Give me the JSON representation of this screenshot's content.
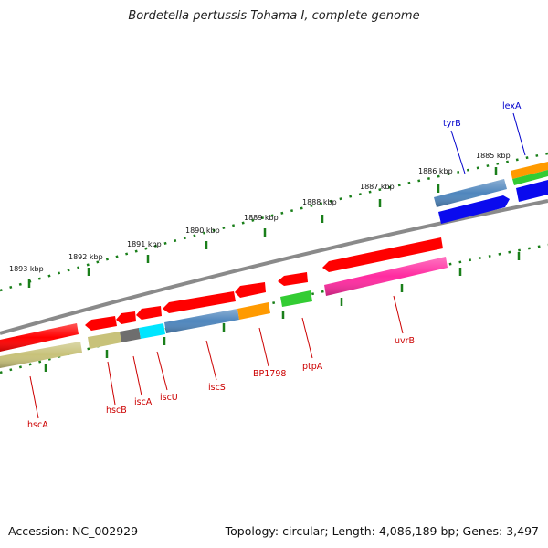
{
  "title": "Bordetella pertussis Tohama I, complete genome",
  "footer": {
    "accession": "Accession: NC_002929",
    "summary": "Topology: circular; Length: 4,086,189 bp; Genes: 3,497"
  },
  "ruler_labels": [
    "1893 kbp",
    "1892 kbp",
    "1891 kbp",
    "1890 kbp",
    "1889 kbp",
    "1888 kbp",
    "1887 kbp",
    "1886 kbp",
    "1885 kbp"
  ],
  "genes": [
    {
      "name": "hscA",
      "strand": "top"
    },
    {
      "name": "hscB",
      "strand": "top"
    },
    {
      "name": "iscA",
      "strand": "top"
    },
    {
      "name": "iscU",
      "strand": "top"
    },
    {
      "name": "iscS",
      "strand": "top"
    },
    {
      "name": "BP1798",
      "strand": "top"
    },
    {
      "name": "ptpA",
      "strand": "top"
    },
    {
      "name": "uvrB",
      "strand": "top"
    },
    {
      "name": "tyrB",
      "strand": "bottom"
    },
    {
      "name": "lexA",
      "strand": "bottom"
    }
  ],
  "colors": {
    "red": "#ff0000",
    "khaki": "#c8c27a",
    "gray": "#6e6e6e",
    "cyan": "#00e5ff",
    "steelblue": "#4f86bd",
    "orange": "#ff9a00",
    "green": "#33cc33",
    "pink": "#ff2ba0",
    "blue": "#0a0aee",
    "backbone": "#8a8a8a",
    "ruler": "#1a7f1a",
    "label_red": "#cc0000",
    "label_blue": "#0000cc"
  }
}
